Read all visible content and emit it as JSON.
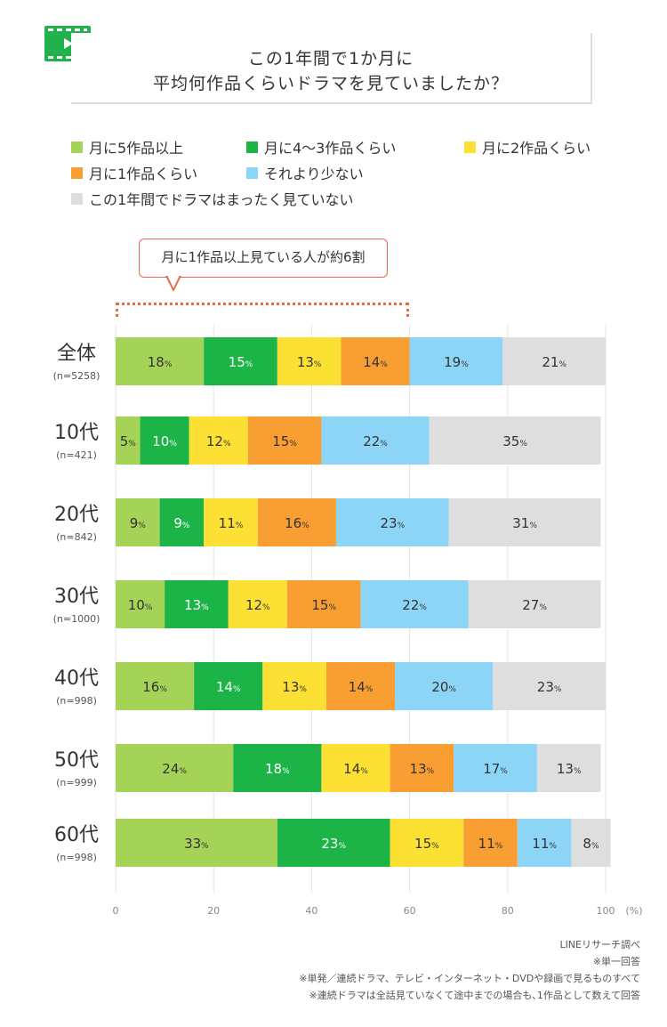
{
  "title": {
    "line1": "この1年間で1か月に",
    "line2": "平均何作品くらいドラマを見ていましたか？"
  },
  "icons": {
    "header": "film-play-icon"
  },
  "colors": {
    "c1": "#a5d357",
    "c2": "#1cb347",
    "c3": "#fde034",
    "c4": "#f89e32",
    "c5": "#8cd5f7",
    "c6": "#dedede",
    "accent": "#ea6a4c"
  },
  "callout": {
    "text": "月に1作品以上見ている人が約6割"
  },
  "chart_data": {
    "type": "bar",
    "orientation": "horizontal",
    "stacked": true,
    "title": "この1年間で1か月に平均何作品くらいドラマを見ていましたか？",
    "unit_label": "(%)",
    "xlim": [
      0,
      100
    ],
    "xticks": [
      "0",
      "20",
      "40",
      "60",
      "80",
      "100"
    ],
    "legend": [
      {
        "key": "c1",
        "label": "月に5作品以上"
      },
      {
        "key": "c2",
        "label": "月に4～3作品くらい"
      },
      {
        "key": "c3",
        "label": "月に2作品くらい"
      },
      {
        "key": "c4",
        "label": "月に1作品くらい"
      },
      {
        "key": "c5",
        "label": "それより少ない"
      },
      {
        "key": "c6",
        "label": "この1年間でドラマはまったく見ていない"
      }
    ],
    "categories": [
      {
        "label": "全体",
        "n": "(n=5258)",
        "values": [
          18,
          15,
          13,
          14,
          19,
          21
        ]
      },
      {
        "label": "10代",
        "n": "(n=421)",
        "values": [
          5,
          10,
          12,
          15,
          22,
          35
        ]
      },
      {
        "label": "20代",
        "n": "(n=842)",
        "values": [
          9,
          9,
          11,
          16,
          23,
          31
        ]
      },
      {
        "label": "30代",
        "n": "(n=1000)",
        "values": [
          10,
          13,
          12,
          15,
          22,
          27
        ]
      },
      {
        "label": "40代",
        "n": "(n=998)",
        "values": [
          16,
          14,
          13,
          14,
          20,
          23
        ]
      },
      {
        "label": "50代",
        "n": "(n=999)",
        "values": [
          24,
          18,
          14,
          13,
          17,
          13
        ]
      },
      {
        "label": "60代",
        "n": "(n=998)",
        "values": [
          33,
          23,
          15,
          11,
          11,
          8
        ]
      }
    ]
  },
  "notes": {
    "source": "LINEリサーチ調べ",
    "n1": "※単一回答",
    "n2": "※単発／連続ドラマ、テレビ・インターネット・DVDや録画で見るものすべて",
    "n3": "※連続ドラマは全話見ていなくて途中までの場合も､1作品として数えて回答"
  }
}
